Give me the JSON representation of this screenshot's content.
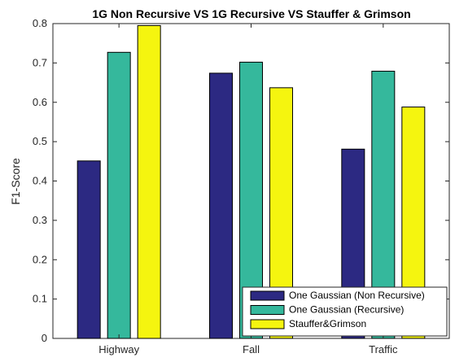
{
  "chart_data": {
    "type": "bar",
    "title": "1G Non Recursive VS 1G Recursive VS Stauffer & Grimson",
    "xlabel": "",
    "ylabel": "F1-Score",
    "categories": [
      "Highway",
      "Fall",
      "Traffic"
    ],
    "ylim": [
      0,
      0.8
    ],
    "yticks": [
      "0",
      "0.1",
      "0.2",
      "0.3",
      "0.4",
      "0.5",
      "0.6",
      "0.7",
      "0.8"
    ],
    "grid": false,
    "legend_position": "bottom-right",
    "series": [
      {
        "name": "One Gaussian (Non Recursive)",
        "color": "#2c2982",
        "values": [
          0.451,
          0.674,
          0.481
        ]
      },
      {
        "name": "One Gaussian (Recursive)",
        "color": "#35b89c",
        "values": [
          0.727,
          0.702,
          0.679
        ]
      },
      {
        "name": "Stauffer&Grimson",
        "color": "#f5f50f",
        "values": [
          0.795,
          0.637,
          0.588
        ]
      }
    ]
  }
}
